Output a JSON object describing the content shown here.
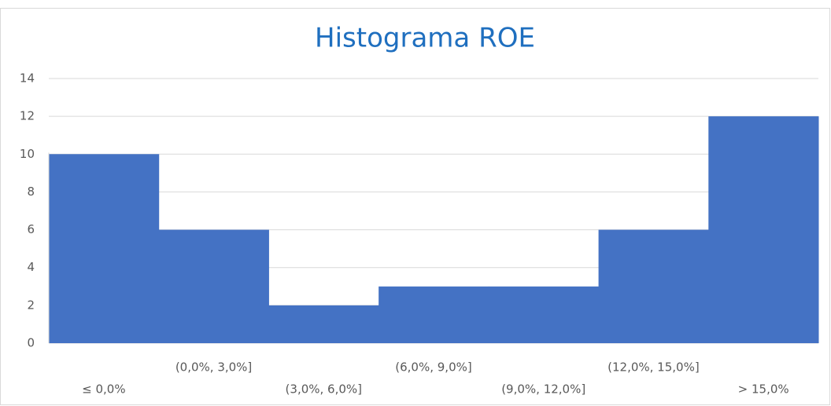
{
  "chart_data": {
    "type": "bar",
    "title": "Histograma ROE",
    "categories": [
      "≤ 0,0%",
      "(0,0%, 3,0%]",
      "(3,0%, 6,0%]",
      "(6,0%, 9,0%]",
      "(9,0%, 12,0%]",
      "(12,0%, 15,0%]",
      "> 15,0%"
    ],
    "values": [
      10,
      6,
      2,
      3,
      3,
      6,
      12
    ],
    "color": "#4472c4",
    "ylim": [
      0,
      14
    ],
    "yticks": [
      0,
      2,
      4,
      6,
      8,
      10,
      12,
      14
    ],
    "grid": true
  }
}
